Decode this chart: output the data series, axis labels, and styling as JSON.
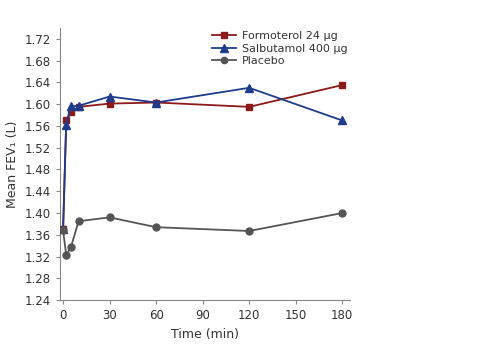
{
  "time": [
    0,
    2,
    5,
    10,
    30,
    60,
    120,
    180
  ],
  "formoterol": [
    1.37,
    1.57,
    1.585,
    1.595,
    1.601,
    1.603,
    1.595,
    1.635
  ],
  "salbutamol": [
    1.37,
    1.562,
    1.596,
    1.597,
    1.614,
    1.603,
    1.63,
    1.57
  ],
  "placebo": [
    1.368,
    1.323,
    1.337,
    1.385,
    1.392,
    1.374,
    1.367,
    1.4
  ],
  "formoterol_color": "#8B1A1A",
  "salbutamol_color": "#1F3B8C",
  "placebo_color": "#555555",
  "formoterol_label": "Formoterol 24 μg",
  "salbutamol_label": "Salbutamol 400 μg",
  "placebo_label": "Placebo",
  "xlabel": "Time (min)",
  "ylabel": "Mean FEV₁ (L)",
  "xlim": [
    -2,
    185
  ],
  "ylim": [
    1.24,
    1.74
  ],
  "xticks": [
    0,
    30,
    60,
    90,
    120,
    150,
    180
  ],
  "yticks": [
    1.24,
    1.28,
    1.32,
    1.36,
    1.4,
    1.44,
    1.48,
    1.52,
    1.56,
    1.6,
    1.64,
    1.68,
    1.72
  ],
  "background_color": "#ffffff",
  "spine_color": "#888888",
  "tick_color": "#888888"
}
